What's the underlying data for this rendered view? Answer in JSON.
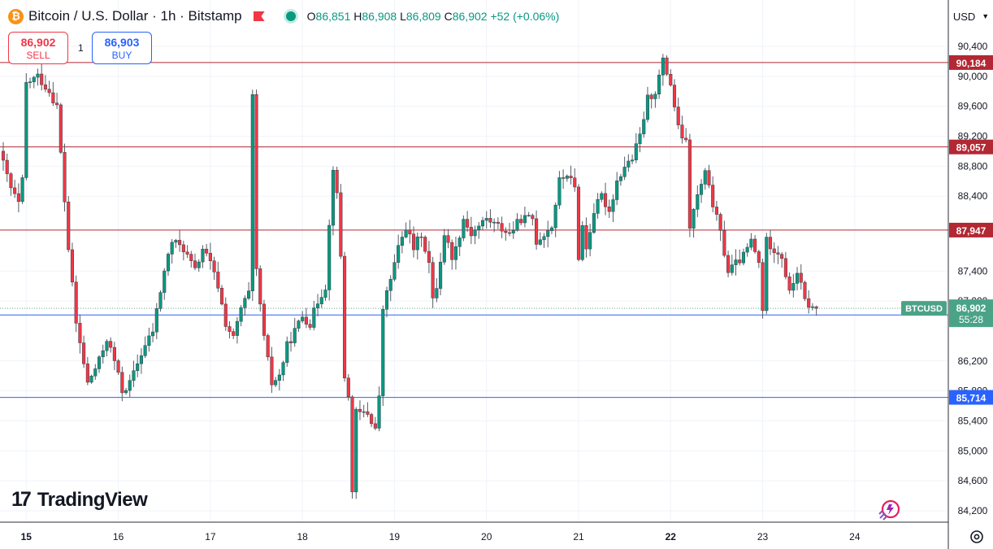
{
  "header": {
    "symbol_title": "Bitcoin / U.S. Dollar · 1h · Bitstamp",
    "open_label": "O",
    "open": "86,851",
    "high_label": "H",
    "high": "86,908",
    "low_label": "L",
    "low": "86,809",
    "close_label": "C",
    "close": "86,902",
    "change": "+52 (+0.06%)"
  },
  "trade": {
    "sell_price": "86,902",
    "sell_label": "SELL",
    "spread": "1",
    "buy_price": "86,903",
    "buy_label": "BUY"
  },
  "currency": {
    "label": "USD"
  },
  "branding": {
    "name": "TradingView"
  },
  "icons": {
    "coin": "bitcoin-icon",
    "flag": "flag-icon",
    "status": "market-open-dot-icon",
    "logo": "tradingview-logo-icon",
    "snapshot": "snapshot-icon",
    "settings": "gear-icon"
  },
  "colors": {
    "up": "#089981",
    "down": "#f23645",
    "resistance": "#b22833",
    "support": "#2962ff",
    "price_tag": "#4ba387"
  },
  "chart_data": {
    "type": "candlestick",
    "timeframe": "1h",
    "ylim": [
      84100,
      90700
    ],
    "y_ticks": [
      84200,
      84600,
      85000,
      85400,
      85800,
      86200,
      87000,
      87400,
      88400,
      88800,
      89200,
      89600,
      90000,
      90400
    ],
    "x_ticks": [
      {
        "label": "15",
        "index": 6
      },
      {
        "label": "16",
        "index": 30
      },
      {
        "label": "17",
        "index": 54
      },
      {
        "label": "18",
        "index": 78
      },
      {
        "label": "19",
        "index": 102
      },
      {
        "label": "20",
        "index": 126
      },
      {
        "label": "21",
        "index": 150
      },
      {
        "label": "22",
        "index": 174
      },
      {
        "label": "23",
        "index": 198
      },
      {
        "label": "24",
        "index": 222
      }
    ],
    "bold_x_ticks": [
      "15",
      "22"
    ],
    "horizontal_lines": [
      {
        "kind": "resistance",
        "value": 90184,
        "label": "90,184"
      },
      {
        "kind": "resistance",
        "value": 89057,
        "label": "89,057"
      },
      {
        "kind": "resistance",
        "value": 87947,
        "label": "87,947"
      },
      {
        "kind": "support",
        "value": 86814,
        "label": "86,814"
      },
      {
        "kind": "support",
        "value": 85714,
        "label": "85,714"
      }
    ],
    "last_price": {
      "value": 86902,
      "symbol": "BTCUSD",
      "label": "86,902",
      "countdown": "55:28"
    },
    "anchors": [
      [
        0,
        89000
      ],
      [
        3,
        88500
      ],
      [
        5,
        88300
      ],
      [
        6,
        88600
      ],
      [
        7,
        89900
      ],
      [
        10,
        90000
      ],
      [
        13,
        89800
      ],
      [
        15,
        89600
      ],
      [
        18,
        87700
      ],
      [
        20,
        86700
      ],
      [
        23,
        85900
      ],
      [
        26,
        86200
      ],
      [
        28,
        86500
      ],
      [
        30,
        86200
      ],
      [
        32,
        85800
      ],
      [
        34,
        85900
      ],
      [
        37,
        86300
      ],
      [
        40,
        86600
      ],
      [
        43,
        87400
      ],
      [
        45,
        87800
      ],
      [
        48,
        87700
      ],
      [
        51,
        87400
      ],
      [
        53,
        87700
      ],
      [
        55,
        87500
      ],
      [
        57,
        87200
      ],
      [
        59,
        86700
      ],
      [
        61,
        86500
      ],
      [
        63,
        86900
      ],
      [
        65,
        87100
      ],
      [
        66,
        89700
      ],
      [
        67,
        87400
      ],
      [
        69,
        86500
      ],
      [
        71,
        85900
      ],
      [
        73,
        86000
      ],
      [
        75,
        86400
      ],
      [
        77,
        86600
      ],
      [
        79,
        86800
      ],
      [
        81,
        86700
      ],
      [
        83,
        87000
      ],
      [
        85,
        87200
      ],
      [
        87,
        88800
      ],
      [
        88,
        88400
      ],
      [
        89,
        87600
      ],
      [
        90,
        86000
      ],
      [
        91,
        85700
      ],
      [
        92,
        84500
      ],
      [
        93,
        85500
      ],
      [
        96,
        85500
      ],
      [
        98,
        85300
      ],
      [
        99,
        85700
      ],
      [
        100,
        86900
      ],
      [
        102,
        87300
      ],
      [
        104,
        87700
      ],
      [
        106,
        88000
      ],
      [
        108,
        87700
      ],
      [
        110,
        87900
      ],
      [
        112,
        87500
      ],
      [
        113,
        87000
      ],
      [
        114,
        87200
      ],
      [
        116,
        87900
      ],
      [
        118,
        87600
      ],
      [
        119,
        87700
      ],
      [
        121,
        88100
      ],
      [
        123,
        87900
      ],
      [
        125,
        88000
      ],
      [
        127,
        88100
      ],
      [
        130,
        88000
      ],
      [
        133,
        87900
      ],
      [
        136,
        88100
      ],
      [
        139,
        88100
      ],
      [
        140,
        87800
      ],
      [
        142,
        87900
      ],
      [
        144,
        88000
      ],
      [
        146,
        88600
      ],
      [
        148,
        88700
      ],
      [
        150,
        88500
      ],
      [
        151,
        87600
      ],
      [
        152,
        88000
      ],
      [
        153,
        87700
      ],
      [
        155,
        88200
      ],
      [
        157,
        88400
      ],
      [
        159,
        88200
      ],
      [
        161,
        88600
      ],
      [
        163,
        88800
      ],
      [
        165,
        88900
      ],
      [
        167,
        89200
      ],
      [
        169,
        89700
      ],
      [
        171,
        89800
      ],
      [
        173,
        90200
      ],
      [
        175,
        89900
      ],
      [
        177,
        89300
      ],
      [
        179,
        89100
      ],
      [
        180,
        88000
      ],
      [
        182,
        88400
      ],
      [
        184,
        88700
      ],
      [
        186,
        88300
      ],
      [
        188,
        87900
      ],
      [
        190,
        87400
      ],
      [
        192,
        87500
      ],
      [
        194,
        87600
      ],
      [
        196,
        87800
      ],
      [
        198,
        87500
      ],
      [
        199,
        86900
      ],
      [
        200,
        87800
      ],
      [
        202,
        87700
      ],
      [
        204,
        87600
      ],
      [
        206,
        87100
      ],
      [
        208,
        87400
      ],
      [
        210,
        87000
      ],
      [
        212,
        86900
      ]
    ]
  }
}
